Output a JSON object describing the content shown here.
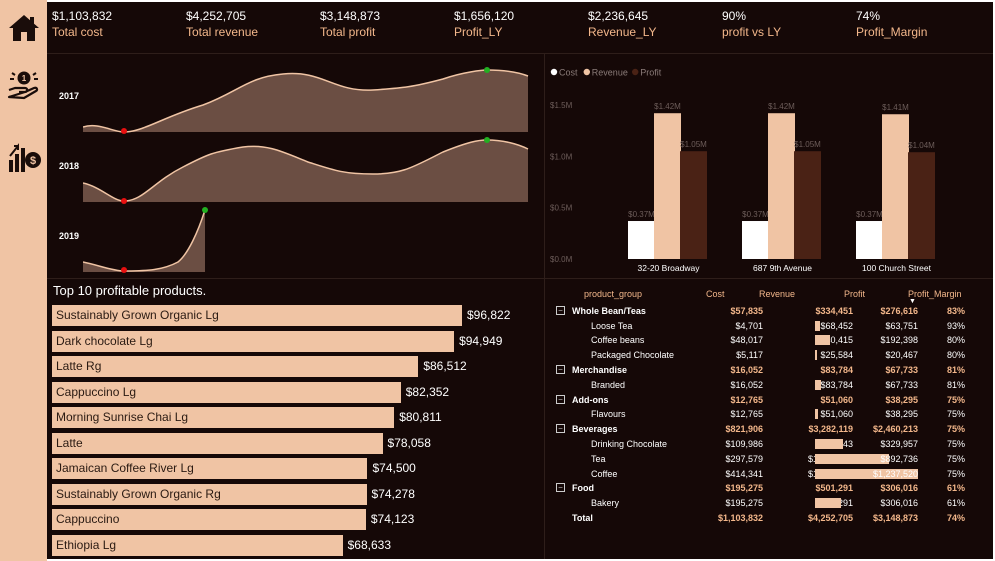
{
  "nav": {
    "home_icon": "home-icon",
    "money_hand_icon": "money-hand-icon",
    "profit_growth_icon": "profit-growth-icon"
  },
  "kpis": [
    {
      "value": "$1,103,832",
      "label": "Total cost"
    },
    {
      "value": "$4,252,705",
      "label": "Total revenue"
    },
    {
      "value": "$3,148,873",
      "label": "Total profit"
    },
    {
      "value": "$1,656,120",
      "label": "Profit_LY"
    },
    {
      "value": "$2,236,645",
      "label": "Revenue_LY"
    },
    {
      "value": "90%",
      "label": "profit vs LY"
    },
    {
      "value": "74%",
      "label": "Profit_Margin"
    }
  ],
  "area_charts": {
    "years": [
      "2017",
      "2018",
      "2019"
    ],
    "fill_color": "#6b4e43",
    "line_color": "#f0c4a4",
    "min_marker_color": "#e81010",
    "max_marker_color": "#22b022"
  },
  "chart_data": [
    {
      "type": "bar",
      "title": "",
      "categories": [
        "32-20 Broadway",
        "687 9th Avenue",
        "100 Church Street"
      ],
      "series": [
        {
          "name": "Cost",
          "values": [
            0.37,
            0.37,
            0.37
          ],
          "labels": [
            "$0.37M",
            "$0.37M",
            "$0.37M"
          ],
          "color": "#ffffff"
        },
        {
          "name": "Revenue",
          "values": [
            1.42,
            1.42,
            1.41
          ],
          "labels": [
            "$1.42M",
            "$1.42M",
            "$1.41M"
          ],
          "color": "#f0c4a4"
        },
        {
          "name": "Profit",
          "values": [
            1.05,
            1.05,
            1.04
          ],
          "labels": [
            "$1.05M",
            "$1.05M",
            "$1.04M"
          ],
          "color": "#4a2215"
        }
      ],
      "yticks": [
        "$0.0M",
        "$0.5M",
        "$1.0M",
        "$1.5M"
      ],
      "ylim": [
        0,
        1.5
      ],
      "legend_position": "top-left"
    },
    {
      "type": "bar",
      "orientation": "horizontal",
      "title": "Top 10 profitable products.",
      "categories": [
        "Sustainably Grown Organic Lg",
        "Dark chocolate Lg",
        "Latte Rg",
        "Cappuccino Lg",
        "Morning Sunrise Chai Lg",
        "Latte",
        "Jamaican Coffee River Lg",
        "Sustainably Grown Organic Rg",
        "Cappuccino",
        "Ethiopia Lg"
      ],
      "values": [
        96822,
        94949,
        86512,
        82352,
        80811,
        78058,
        74500,
        74278,
        74123,
        68633
      ],
      "labels": [
        "$96,822",
        "$94,949",
        "$86,512",
        "$82,352",
        "$80,811",
        "$78,058",
        "$74,500",
        "$74,278",
        "$74,123",
        "$68,633"
      ]
    }
  ],
  "matrix": {
    "headers": [
      "product_group",
      "Cost",
      "Revenue",
      "Profit",
      "Profit_Margin"
    ],
    "rows": [
      {
        "label": "Whole Bean/Teas",
        "level": 0,
        "cost": "$57,835",
        "revenue": "$334,451",
        "profit": "$276,616",
        "margin": "83%",
        "bar": 0
      },
      {
        "label": "Loose Tea",
        "level": 1,
        "cost": "$4,701",
        "revenue": "$68,452",
        "profit": "$63,751",
        "margin": "93%",
        "bar": 0.05
      },
      {
        "label": "Coffee beans",
        "level": 1,
        "cost": "$48,017",
        "revenue": "$240,415",
        "profit": "$192,398",
        "margin": "80%",
        "bar": 0.15
      },
      {
        "label": "Packaged Chocolate",
        "level": 1,
        "cost": "$5,117",
        "revenue": "$25,584",
        "profit": "$20,467",
        "margin": "80%",
        "bar": 0.02
      },
      {
        "label": "Merchandise",
        "level": 0,
        "cost": "$16,052",
        "revenue": "$83,784",
        "profit": "$67,733",
        "margin": "81%",
        "bar": 0
      },
      {
        "label": "Branded",
        "level": 1,
        "cost": "$16,052",
        "revenue": "$83,784",
        "profit": "$67,733",
        "margin": "81%",
        "bar": 0.055
      },
      {
        "label": "Add-ons",
        "level": 0,
        "cost": "$12,765",
        "revenue": "$51,060",
        "profit": "$38,295",
        "margin": "75%",
        "bar": 0
      },
      {
        "label": "Flavours",
        "level": 1,
        "cost": "$12,765",
        "revenue": "$51,060",
        "profit": "$38,295",
        "margin": "75%",
        "bar": 0.03
      },
      {
        "label": "Beverages",
        "level": 0,
        "cost": "$821,906",
        "revenue": "$3,282,119",
        "profit": "$2,460,213",
        "margin": "75%",
        "bar": 0
      },
      {
        "label": "Drinking Chocolate",
        "level": 1,
        "cost": "$109,986",
        "revenue": "$439,943",
        "profit": "$329,957",
        "margin": "75%",
        "bar": 0.27
      },
      {
        "label": "Tea",
        "level": 1,
        "cost": "$297,579",
        "revenue": "$1,190,315",
        "profit": "$892,736",
        "margin": "75%",
        "bar": 0.72
      },
      {
        "label": "Coffee",
        "level": 1,
        "cost": "$414,341",
        "revenue": "$1,651,861",
        "profit": "$1,237,520",
        "margin": "75%",
        "bar": 1.0
      },
      {
        "label": "Food",
        "level": 0,
        "cost": "$195,275",
        "revenue": "$501,291",
        "profit": "$306,016",
        "margin": "61%",
        "bar": 0
      },
      {
        "label": "Bakery",
        "level": 1,
        "cost": "$195,275",
        "revenue": "$501,291",
        "profit": "$306,016",
        "margin": "61%",
        "bar": 0.25
      },
      {
        "label": "Total",
        "level": 2,
        "cost": "$1,103,832",
        "revenue": "$4,252,705",
        "profit": "$3,148,873",
        "margin": "74%",
        "bar": 0
      }
    ],
    "expander_symbol": "−"
  }
}
